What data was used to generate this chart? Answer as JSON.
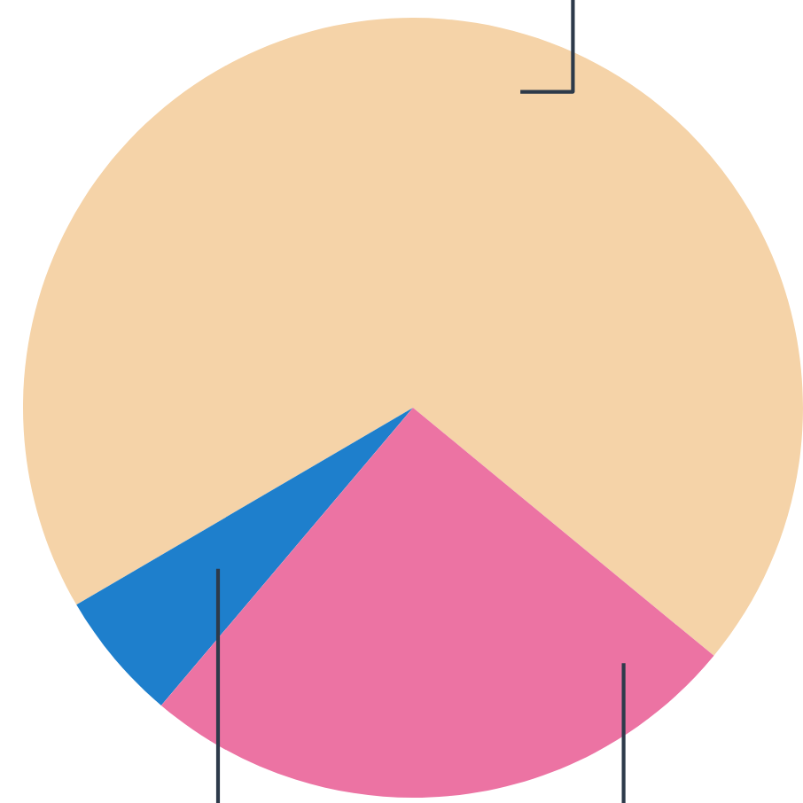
{
  "chart_data": {
    "type": "pie",
    "categories": [
      null,
      null,
      null
    ],
    "values": [
      69.4,
      5.4,
      25.2
    ],
    "colors": [
      "#f5d3a8",
      "#1e7fcc",
      "#ec73a3"
    ]
  }
}
